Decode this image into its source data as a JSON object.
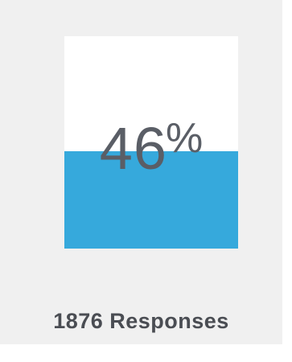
{
  "stat": {
    "percent_number": "46",
    "percent_sign": "%",
    "fill_fraction": 0.46,
    "fill_color": "#36a9dc",
    "responses_label": "1876 Responses"
  }
}
